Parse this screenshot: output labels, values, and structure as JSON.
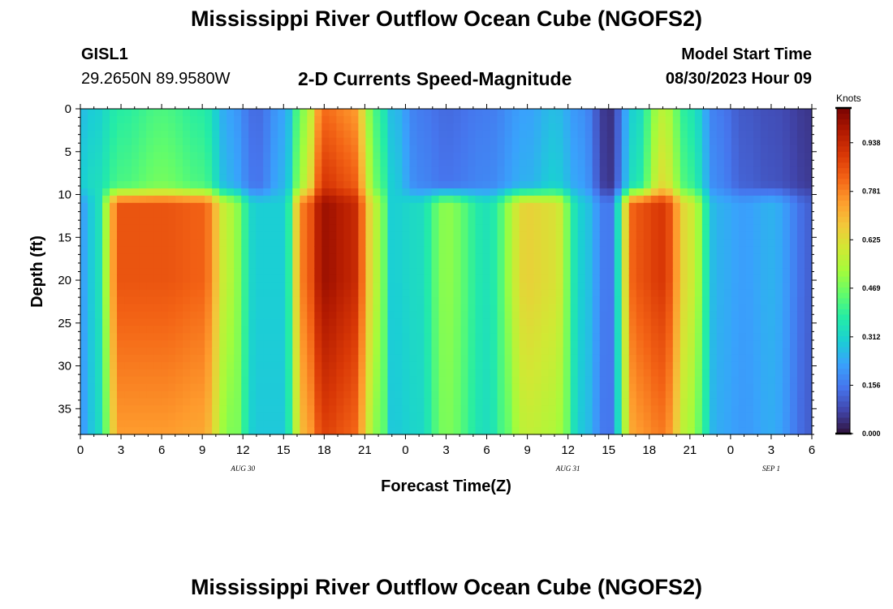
{
  "header": {
    "title": "Mississippi River Outflow Ocean Cube (NGOFS2)",
    "station": "GISL1",
    "coords": "29.2650N  89.9580W",
    "subtitle": "2-D Currents Speed-Magnitude",
    "model_start_label": "Model Start Time",
    "model_start_value": "08/30/2023 Hour 09"
  },
  "footer": {
    "title": "Mississippi River Outflow Ocean Cube (NGOFS2)"
  },
  "chart_data": {
    "type": "heatmap",
    "title": "2-D Currents Speed-Magnitude",
    "xlabel": "Forecast Time(Z)",
    "ylabel": "Depth (ft)",
    "x_unit": "hours since 08/30/2023 00Z",
    "xlim": [
      0,
      54
    ],
    "ylim": [
      0,
      38
    ],
    "y_reversed": true,
    "x_ticks": [
      0,
      3,
      6,
      9,
      12,
      15,
      18,
      21,
      24,
      27,
      30,
      33,
      36,
      39,
      42,
      45,
      48,
      51,
      54
    ],
    "x_tick_labels": [
      "0",
      "3",
      "6",
      "9",
      "12",
      "15",
      "18",
      "21",
      "0",
      "3",
      "6",
      "9",
      "12",
      "15",
      "18",
      "21",
      "0",
      "3",
      "6"
    ],
    "y_ticks": [
      0,
      5,
      10,
      15,
      20,
      25,
      30,
      35
    ],
    "y_tick_labels": [
      "0",
      "5",
      "10",
      "15",
      "20",
      "25",
      "30",
      "35"
    ],
    "date_labels": [
      {
        "x": 12,
        "text": "AUG 30"
      },
      {
        "x": 36,
        "text": "AUG 31"
      },
      {
        "x": 51,
        "text": "SEP 1"
      }
    ],
    "colorbar": {
      "unit": "Knots",
      "min": 0.0,
      "max": 1.05,
      "ticks": [
        0.0,
        0.156,
        0.312,
        0.469,
        0.625,
        0.781,
        0.938
      ],
      "tick_labels": [
        "0.000",
        "0.156",
        "0.312",
        "0.469",
        "0.625",
        "0.781",
        "0.938"
      ],
      "colormap": [
        "#30123b",
        "#4145ab",
        "#4675ed",
        "#39a2fc",
        "#1bcfd4",
        "#24eca6",
        "#61fc6c",
        "#a4fc3b",
        "#d1e834",
        "#f3c63a",
        "#fe9b2d",
        "#f36315",
        "#d93806",
        "#b11901",
        "#7a0402"
      ]
    },
    "surface_layer": {
      "depth_range": [
        0,
        9
      ],
      "times": [
        0,
        1,
        3,
        6,
        9,
        11,
        13,
        15,
        16.5,
        18,
        20,
        22,
        23,
        25,
        27,
        30,
        33,
        35,
        37,
        39,
        41,
        43,
        45,
        47,
        49,
        51,
        54
      ],
      "speed": [
        0.3,
        0.33,
        0.42,
        0.47,
        0.42,
        0.25,
        0.15,
        0.25,
        0.55,
        0.9,
        0.85,
        0.45,
        0.3,
        0.18,
        0.15,
        0.18,
        0.25,
        0.3,
        0.22,
        0.05,
        0.35,
        0.62,
        0.4,
        0.18,
        0.12,
        0.1,
        0.06
      ]
    },
    "deep_layer": {
      "depth_range": [
        11,
        38
      ],
      "times": [
        0,
        1,
        3,
        6,
        9,
        11,
        13,
        15,
        16.5,
        18,
        20,
        22,
        23,
        25,
        27,
        30,
        33,
        35,
        37,
        39,
        41,
        43,
        45,
        47,
        49,
        51,
        54
      ],
      "speed": [
        0.22,
        0.3,
        0.85,
        0.85,
        0.83,
        0.55,
        0.3,
        0.3,
        0.8,
        1.0,
        0.95,
        0.55,
        0.3,
        0.33,
        0.5,
        0.35,
        0.65,
        0.62,
        0.3,
        0.15,
        0.85,
        0.9,
        0.6,
        0.25,
        0.22,
        0.25,
        0.12
      ]
    }
  }
}
